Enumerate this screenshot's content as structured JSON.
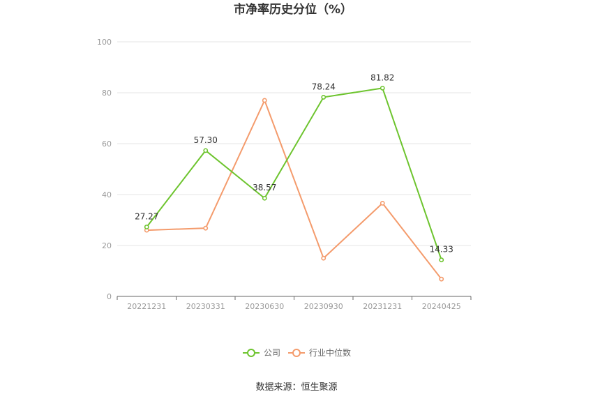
{
  "chart_data": {
    "type": "line",
    "title": "市净率历史分位（%）",
    "categories": [
      "20221231",
      "20230331",
      "20230630",
      "20230930",
      "20231231",
      "20240425"
    ],
    "series": [
      {
        "name": "公司",
        "color": "#6dc42e",
        "values": [
          27.27,
          57.3,
          38.57,
          78.24,
          81.82,
          14.33
        ],
        "labels": [
          "27.27",
          "57.30",
          "38.57",
          "78.24",
          "81.82",
          "14.33"
        ]
      },
      {
        "name": "行业中位数",
        "color": "#f49b6c",
        "values": [
          26.0,
          26.8,
          77.0,
          15.0,
          36.6,
          6.8
        ]
      }
    ],
    "ylim": [
      0,
      100
    ],
    "yticks": [
      "0",
      "20",
      "40",
      "60",
      "80",
      "100"
    ],
    "grid": true,
    "legend_position": "bottom-center"
  },
  "footer": {
    "source": "数据来源：恒生聚源"
  }
}
